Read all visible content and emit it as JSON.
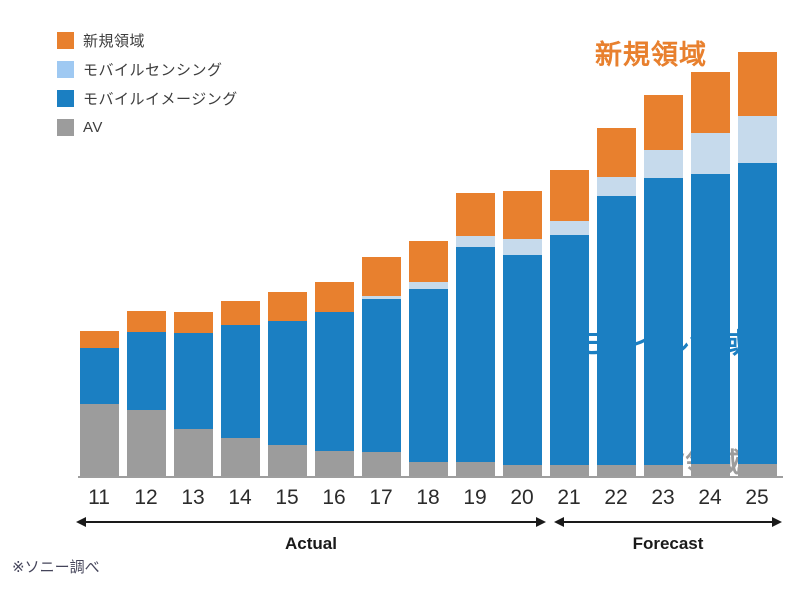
{
  "colors": {
    "new_area": "#E8802E",
    "mobile_sensing_bar": "#C6DAEC",
    "mobile_sensing_legend": "#9FC9F2",
    "mobile_imaging": "#1B7FC2",
    "av": "#9C9C9C",
    "axis": "#9E9E9E",
    "arrow": "#1A1A1A"
  },
  "legend": {
    "items": [
      {
        "label": "新規領域",
        "color": "#E8802E"
      },
      {
        "label": "モバイルセンシング",
        "color": "#9FC9F2"
      },
      {
        "label": "モバイルイメージング",
        "color": "#1B7FC2"
      },
      {
        "label": "AV",
        "color": "#9C9C9C"
      }
    ]
  },
  "annotations": {
    "new_area": "新規領域",
    "mobile_area": "モバイル領域",
    "av_area": "AV領域"
  },
  "chart_data": {
    "type": "bar",
    "stacked": true,
    "title": "",
    "xlabel": "",
    "ylabel": "",
    "ylim": [
      0,
      100
    ],
    "value_scale_note": "no y-axis shown; values are relative units estimated from bar heights, tallest bar (25) = 100",
    "categories": [
      "11",
      "12",
      "13",
      "14",
      "15",
      "16",
      "17",
      "18",
      "19",
      "20",
      "21",
      "22",
      "23",
      "24",
      "25"
    ],
    "series": [
      {
        "key": "av",
        "name": "AV",
        "color": "#9C9C9C",
        "values": [
          17.0,
          15.6,
          11.1,
          9.0,
          7.3,
          5.9,
          5.7,
          3.3,
          3.3,
          2.6,
          2.6,
          2.6,
          2.6,
          2.8,
          2.8
        ]
      },
      {
        "key": "imaging",
        "name": "モバイルイメージング",
        "color": "#1B7FC2",
        "values": [
          13.2,
          18.2,
          22.5,
          26.5,
          29.1,
          32.6,
          35.9,
          40.7,
          50.6,
          49.4,
          54.1,
          63.4,
          67.6,
          68.3,
          70.9
        ]
      },
      {
        "key": "sensing",
        "name": "モバイルセンシング",
        "color": "#C6DAEC",
        "values": [
          0,
          0,
          0,
          0,
          0,
          0,
          0.7,
          1.7,
          2.6,
          3.8,
          3.3,
          4.3,
          6.6,
          9.5,
          10.9
        ]
      },
      {
        "key": "new",
        "name": "新規領域",
        "color": "#E8802E",
        "values": [
          4.0,
          5.0,
          5.0,
          5.7,
          6.9,
          7.1,
          9.2,
          9.7,
          10.2,
          11.3,
          12.1,
          11.6,
          12.8,
          14.4,
          15.1
        ]
      }
    ],
    "legend_position": "top-left",
    "grid": false
  },
  "periods": {
    "actual_label": "Actual",
    "forecast_label": "Forecast"
  },
  "footer": {
    "source_note": "※ソニー調べ"
  }
}
